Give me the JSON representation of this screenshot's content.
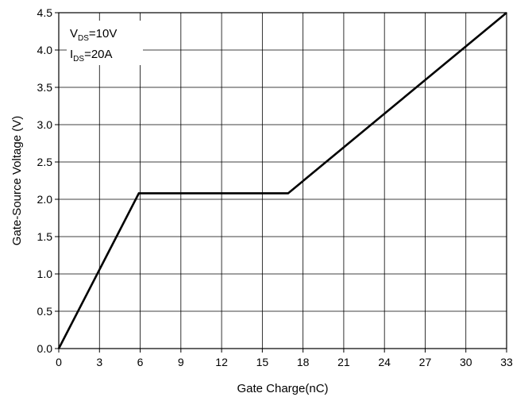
{
  "chart_data": {
    "type": "line",
    "title": "",
    "xlabel": "Gate Charge(nC)",
    "ylabel": "Gate-Source Voltage (V)",
    "xlim": [
      0,
      33
    ],
    "ylim": [
      0,
      4.5
    ],
    "xticks": [
      0,
      3,
      6,
      9,
      12,
      15,
      18,
      21,
      24,
      27,
      30,
      33
    ],
    "yticks": [
      0.0,
      0.5,
      1.0,
      1.5,
      2.0,
      2.5,
      3.0,
      3.5,
      4.0,
      4.5
    ],
    "xtick_labels": [
      "0",
      "3",
      "6",
      "9",
      "12",
      "15",
      "18",
      "21",
      "24",
      "27",
      "30",
      "33"
    ],
    "ytick_labels": [
      "0.0",
      "0.5",
      "1.0",
      "1.5",
      "2.0",
      "2.5",
      "3.0",
      "3.5",
      "4.0",
      "4.5"
    ],
    "grid": true,
    "series": [
      {
        "x": [
          0,
          5.9,
          16.9,
          33
        ],
        "y": [
          0,
          2.08,
          2.08,
          4.5
        ],
        "color": "#000000"
      }
    ],
    "annotations": [
      {
        "main": "V",
        "sub": "DS",
        "rest": "=10V"
      },
      {
        "main": "I",
        "sub": "DS",
        "rest": "=20A"
      }
    ]
  }
}
